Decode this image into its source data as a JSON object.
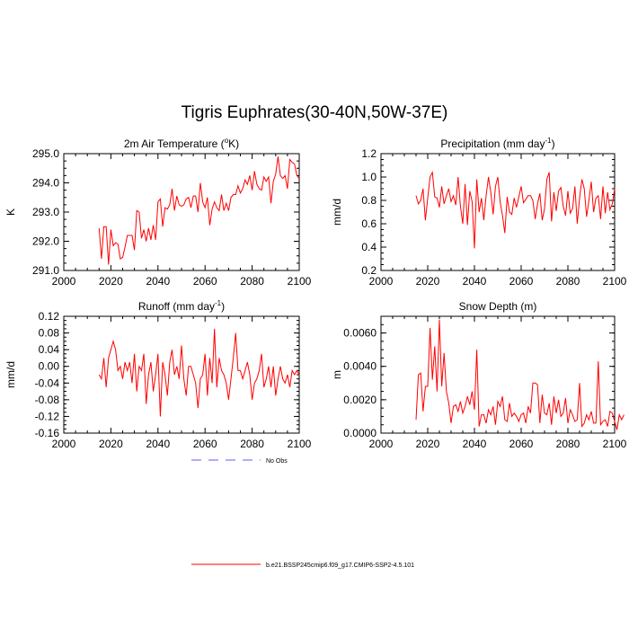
{
  "title": "Tigris Euphrates(30-40N,50W-37E)",
  "colors": {
    "series": "#ff0000",
    "no_obs": "#5b5bff",
    "axis": "#000000"
  },
  "legend": [
    {
      "label": "No Obs",
      "style": "dashed",
      "color": "#5b5bff"
    },
    {
      "label": "b.e21.BSSP245cmip6.f09_g17.CMIP6-SSP2-4.5.101",
      "style": "solid",
      "color": "#ff0000"
    }
  ],
  "chart_data": [
    {
      "type": "line",
      "title": "2m Air Temperature (",
      "title_sup": "o",
      "title_tail": "K)",
      "ylabel": "K",
      "xlim": [
        2000,
        2100
      ],
      "ylim": [
        291.0,
        295.0
      ],
      "xticks": [
        "2000",
        "2020",
        "2040",
        "2060",
        "2080",
        "2100"
      ],
      "yticks": [
        "291.0",
        "292.0",
        "293.0",
        "294.0",
        "295.0"
      ],
      "x_start": 2015,
      "values": [
        292.45,
        291.4,
        292.5,
        292.5,
        291.2,
        292.4,
        291.85,
        291.95,
        291.9,
        291.4,
        291.45,
        291.8,
        292.2,
        292.2,
        292.2,
        291.7,
        293.05,
        293.0,
        292.1,
        292.4,
        292.0,
        292.45,
        292.05,
        292.55,
        292.05,
        293.35,
        293.45,
        292.5,
        293.15,
        293.1,
        293.25,
        293.8,
        293.05,
        293.55,
        293.25,
        293.2,
        293.25,
        293.45,
        293.5,
        293.15,
        293.55,
        293.55,
        293.0,
        294.0,
        293.35,
        293.15,
        293.5,
        292.55,
        293.1,
        293.35,
        293.15,
        293.05,
        293.6,
        293.05,
        293.3,
        293.05,
        293.5,
        293.6,
        293.6,
        293.9,
        293.65,
        293.8,
        294.1,
        293.95,
        294.25,
        293.75,
        294.4,
        293.95,
        293.8,
        293.75,
        294.2,
        294.05,
        294.2,
        293.3,
        294.05,
        294.3,
        294.9,
        294.25,
        294.15,
        294.25,
        293.8,
        294.8,
        294.7,
        294.65,
        294.25,
        294.15
      ]
    },
    {
      "type": "line",
      "title": "Precipitation (mm day",
      "title_sup": "-1",
      "title_tail": ")",
      "ylabel": "mm/d",
      "xlim": [
        2000,
        2100
      ],
      "ylim": [
        0.2,
        1.2
      ],
      "xticks": [
        "2000",
        "2020",
        "2040",
        "2060",
        "2080",
        "2100"
      ],
      "yticks": [
        "0.2",
        "0.4",
        "0.6",
        "0.8",
        "1.0",
        "1.2"
      ],
      "x_start": 2015,
      "values": [
        0.84,
        0.77,
        0.8,
        0.9,
        0.63,
        0.82,
        1.0,
        1.04,
        0.83,
        0.82,
        0.74,
        0.92,
        0.77,
        0.84,
        0.9,
        0.79,
        0.84,
        0.76,
        1.0,
        0.75,
        0.6,
        0.94,
        0.59,
        0.88,
        0.79,
        0.39,
        0.98,
        0.7,
        0.82,
        0.63,
        0.84,
        1.0,
        0.87,
        0.68,
        0.92,
        1.0,
        0.79,
        0.67,
        0.52,
        0.83,
        0.7,
        0.68,
        0.82,
        0.74,
        0.83,
        0.92,
        0.78,
        0.81,
        0.84,
        0.84,
        0.8,
        0.64,
        0.77,
        0.86,
        0.63,
        0.73,
        0.98,
        1.04,
        0.62,
        0.87,
        0.71,
        0.88,
        0.91,
        0.75,
        0.67,
        0.88,
        0.69,
        0.73,
        0.92,
        0.6,
        0.82,
        0.98,
        0.9,
        0.66,
        0.8,
        0.96,
        0.7,
        0.82,
        0.84,
        0.64,
        0.92,
        0.69,
        0.87,
        0.72,
        0.77,
        0.9
      ]
    },
    {
      "type": "line",
      "title": "Runoff (mm day",
      "title_sup": "-1",
      "title_tail": ")",
      "ylabel": "mm/d",
      "xlim": [
        2000,
        2100
      ],
      "ylim": [
        -0.16,
        0.12
      ],
      "xticks": [
        "2000",
        "2020",
        "2040",
        "2060",
        "2080",
        "2100"
      ],
      "yticks": [
        "-0.16",
        "-0.12",
        "-0.08",
        "-0.04",
        "0.00",
        "0.04",
        "0.08",
        "0.12"
      ],
      "x_start": 2015,
      "values": [
        -0.02,
        -0.03,
        0.02,
        -0.05,
        0.02,
        0.04,
        0.06,
        0.04,
        -0.01,
        0.0,
        -0.03,
        0.01,
        -0.01,
        0.01,
        -0.04,
        0.03,
        -0.06,
        0.0,
        -0.01,
        0.03,
        -0.09,
        -0.02,
        0.01,
        -0.06,
        -0.02,
        0.03,
        -0.12,
        0.01,
        -0.02,
        -0.07,
        0.01,
        0.04,
        -0.02,
        0.0,
        -0.03,
        0.05,
        -0.03,
        -0.07,
        0.0,
        0.0,
        -0.02,
        -0.04,
        -0.1,
        -0.03,
        -0.02,
        0.03,
        -0.07,
        0.02,
        -0.04,
        0.09,
        -0.05,
        0.02,
        -0.01,
        -0.02,
        -0.04,
        -0.08,
        -0.03,
        0.02,
        0.08,
        -0.01,
        -0.01,
        -0.03,
        -0.01,
        0.01,
        -0.02,
        -0.08,
        -0.04,
        -0.03,
        -0.01,
        0.03,
        -0.05,
        -0.03,
        0.0,
        -0.05,
        0.0,
        -0.07,
        -0.03,
        0.0,
        -0.03,
        -0.04,
        -0.02,
        -0.05,
        -0.01,
        -0.02,
        -0.01,
        -0.02
      ]
    },
    {
      "type": "line",
      "title": "Snow Depth (m)",
      "title_sup": "",
      "title_tail": "",
      "ylabel": "m",
      "xlim": [
        2000,
        2100
      ],
      "ylim": [
        0.0,
        0.007
      ],
      "xticks": [
        "2000",
        "2020",
        "2040",
        "2060",
        "2080",
        "2100"
      ],
      "yticks": [
        "0.0000",
        "0.0020",
        "0.0040",
        "0.0060"
      ],
      "x_start": 2015,
      "values": [
        0.0008,
        0.0035,
        0.0036,
        0.0013,
        0.0028,
        0.0028,
        0.0063,
        0.0032,
        0.0052,
        0.0025,
        0.0068,
        0.0028,
        0.0048,
        0.0025,
        0.0018,
        0.0006,
        0.0016,
        0.0017,
        0.0013,
        0.0019,
        0.0012,
        0.0016,
        0.0022,
        0.0017,
        0.0025,
        0.0014,
        0.005,
        0.0004,
        0.0011,
        0.0011,
        0.0006,
        0.0014,
        0.0011,
        0.0016,
        0.0005,
        0.0019,
        0.0016,
        0.0022,
        0.0008,
        0.0007,
        0.0018,
        0.001,
        0.0012,
        0.001,
        0.0007,
        0.0011,
        0.0012,
        0.0006,
        0.0016,
        0.0012,
        0.003,
        0.003,
        0.0029,
        0.0006,
        0.0023,
        0.0012,
        0.0011,
        0.0018,
        0.0005,
        0.0022,
        0.0012,
        0.002,
        0.001,
        0.0012,
        0.0021,
        0.0006,
        0.0014,
        0.0011,
        0.0007,
        0.0008,
        0.003,
        0.0004,
        0.0006,
        0.0011,
        0.0008,
        0.0013,
        0.0006,
        0.0006,
        0.0043,
        0.0005,
        0.0007,
        0.0008,
        0.0004,
        0.0013,
        0.0012,
        0.0007,
        0.0002,
        0.0011,
        0.0008,
        0.0011
      ]
    }
  ]
}
